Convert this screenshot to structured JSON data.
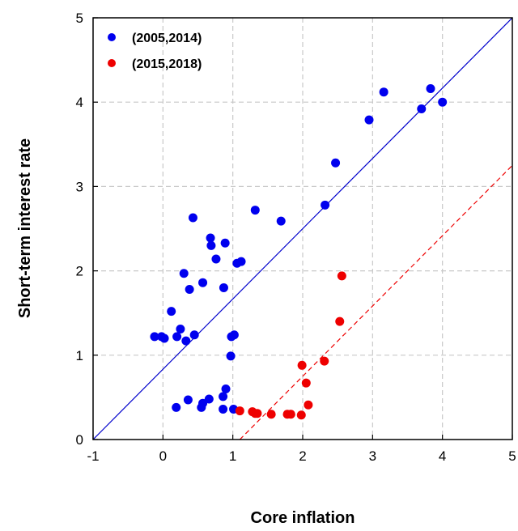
{
  "chart_data": {
    "type": "scatter",
    "title": "",
    "xlabel": "Core inflation",
    "ylabel": "Short-term interest rate",
    "xlim": [
      -1,
      5
    ],
    "ylim": [
      0,
      5
    ],
    "x_ticks": [
      "-1",
      "0",
      "1",
      "2",
      "3",
      "4",
      "5"
    ],
    "y_ticks": [
      "0",
      "1",
      "2",
      "3",
      "4",
      "5"
    ],
    "grid": true,
    "legend_position": "top-left",
    "series": [
      {
        "name": "(2005,2014)",
        "color": "#0000ee",
        "points": [
          [
            -0.12,
            1.22
          ],
          [
            -0.02,
            1.22
          ],
          [
            0.02,
            1.2
          ],
          [
            0.12,
            1.52
          ],
          [
            0.2,
            1.22
          ],
          [
            0.25,
            1.31
          ],
          [
            0.3,
            1.97
          ],
          [
            0.33,
            1.17
          ],
          [
            0.38,
            1.78
          ],
          [
            0.45,
            1.24
          ],
          [
            0.43,
            2.63
          ],
          [
            0.57,
            1.86
          ],
          [
            0.68,
            2.39
          ],
          [
            0.69,
            2.3
          ],
          [
            0.76,
            2.14
          ],
          [
            0.87,
            1.8
          ],
          [
            0.89,
            2.33
          ],
          [
            0.97,
            0.99
          ],
          [
            0.98,
            1.22
          ],
          [
            1.02,
            1.24
          ],
          [
            1.06,
            2.09
          ],
          [
            1.12,
            2.11
          ],
          [
            1.32,
            2.72
          ],
          [
            1.69,
            2.59
          ],
          [
            2.32,
            2.78
          ],
          [
            2.47,
            3.28
          ],
          [
            2.95,
            3.79
          ],
          [
            3.16,
            4.12
          ],
          [
            3.7,
            3.92
          ],
          [
            3.83,
            4.16
          ],
          [
            4.0,
            4.0
          ],
          [
            0.19,
            0.38
          ],
          [
            0.36,
            0.47
          ],
          [
            0.55,
            0.38
          ],
          [
            0.57,
            0.43
          ],
          [
            0.66,
            0.48
          ],
          [
            0.86,
            0.36
          ],
          [
            0.86,
            0.51
          ],
          [
            0.9,
            0.6
          ],
          [
            1.01,
            0.36
          ]
        ]
      },
      {
        "name": "(2015,2018)",
        "color": "#ee0000",
        "points": [
          [
            1.1,
            0.34
          ],
          [
            1.28,
            0.33
          ],
          [
            1.32,
            0.31
          ],
          [
            1.35,
            0.31
          ],
          [
            1.55,
            0.3
          ],
          [
            1.78,
            0.3
          ],
          [
            1.83,
            0.3
          ],
          [
            1.98,
            0.29
          ],
          [
            1.99,
            0.88
          ],
          [
            2.05,
            0.67
          ],
          [
            2.08,
            0.41
          ],
          [
            2.31,
            0.93
          ],
          [
            2.53,
            1.4
          ],
          [
            2.56,
            1.94
          ]
        ]
      }
    ],
    "reference_lines": [
      {
        "style": "solid",
        "color": "#0000cc",
        "from": [
          -1,
          0
        ],
        "to": [
          5,
          5
        ]
      },
      {
        "style": "dashed",
        "color": "#ee0000",
        "from": [
          1.1,
          0
        ],
        "to": [
          5,
          3.25
        ]
      }
    ]
  }
}
